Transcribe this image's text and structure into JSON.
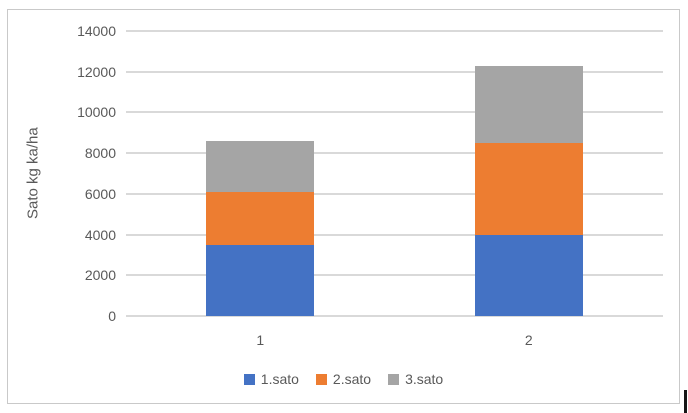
{
  "chart_data": {
    "type": "bar",
    "stacked": true,
    "title": "",
    "categories": [
      "1",
      "2"
    ],
    "series": [
      {
        "name": "1.sato",
        "color": "#4472C4",
        "values": [
          3500,
          4000
        ]
      },
      {
        "name": "2.sato",
        "color": "#ED7D31",
        "values": [
          2600,
          4500
        ]
      },
      {
        "name": "3.sato",
        "color": "#A5A5A5",
        "values": [
          2500,
          3800
        ]
      }
    ],
    "totals": [
      8600,
      12300
    ],
    "xlabel": "",
    "ylabel": "Sato kg ka/ha",
    "ylim": [
      0,
      14000
    ],
    "yticks": [
      0,
      2000,
      4000,
      6000,
      8000,
      10000,
      12000,
      14000
    ],
    "grid": true,
    "legend_position": "bottom-center"
  },
  "styles": {
    "gridline_color": "#d9d9d9",
    "axis_text_color": "#595959",
    "frame_border_color": "#c9c9c9",
    "background_color": "#ffffff",
    "cursor_color": "#161616"
  }
}
